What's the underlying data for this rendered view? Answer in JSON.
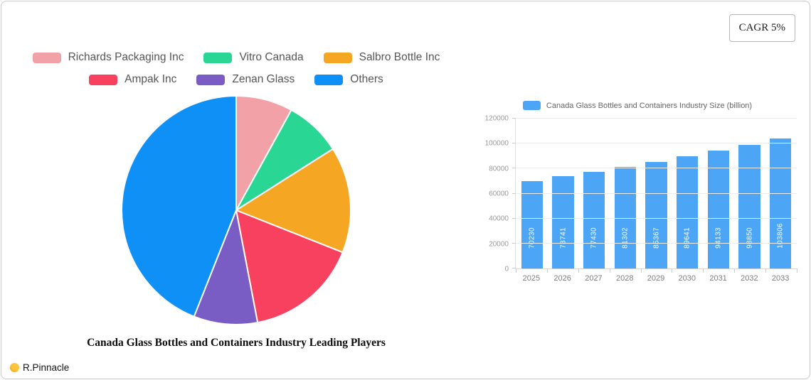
{
  "header": {
    "cagr_label": "CAGR 5%"
  },
  "footer": {
    "brand": "R.Pinnacle",
    "brand_icon": "orange-circle-logo",
    "brand_icon_color": "#ff9100"
  },
  "chart_data": [
    {
      "type": "pie",
      "title": "Canada Glass Bottles and Containers Industry Leading Players",
      "labels": [
        "Richards Packaging Inc",
        "Vitro Canada",
        "Salbro Bottle Inc",
        "Ampak Inc",
        "Zenan Glass",
        "Others"
      ],
      "values": [
        8,
        8,
        15,
        16,
        9,
        44
      ],
      "colors": [
        "#f2a1a6",
        "#29d694",
        "#f5a623",
        "#f8405f",
        "#7a5cc5",
        "#0e90f6"
      ],
      "start_angle_deg": -90,
      "direction": "clockwise",
      "slice_border_color": "#ffffff",
      "legend_position": "top"
    },
    {
      "type": "bar",
      "legend": "Canada Glass Bottles and Containers Industry Size (billion)",
      "categories": [
        "2025",
        "2026",
        "2027",
        "2028",
        "2029",
        "2030",
        "2031",
        "2032",
        "2033"
      ],
      "values": [
        70230,
        73741,
        77430,
        81302,
        85367,
        89641,
        94133,
        98850,
        103806
      ],
      "bar_color": "#4da6f5",
      "value_label_color": "#ffffff",
      "value_labels_rotated": true,
      "ylim": [
        0,
        120000
      ],
      "yticks": [
        0,
        20000,
        40000,
        60000,
        80000,
        100000,
        120000
      ],
      "grid": true,
      "legend_position": "top"
    }
  ]
}
